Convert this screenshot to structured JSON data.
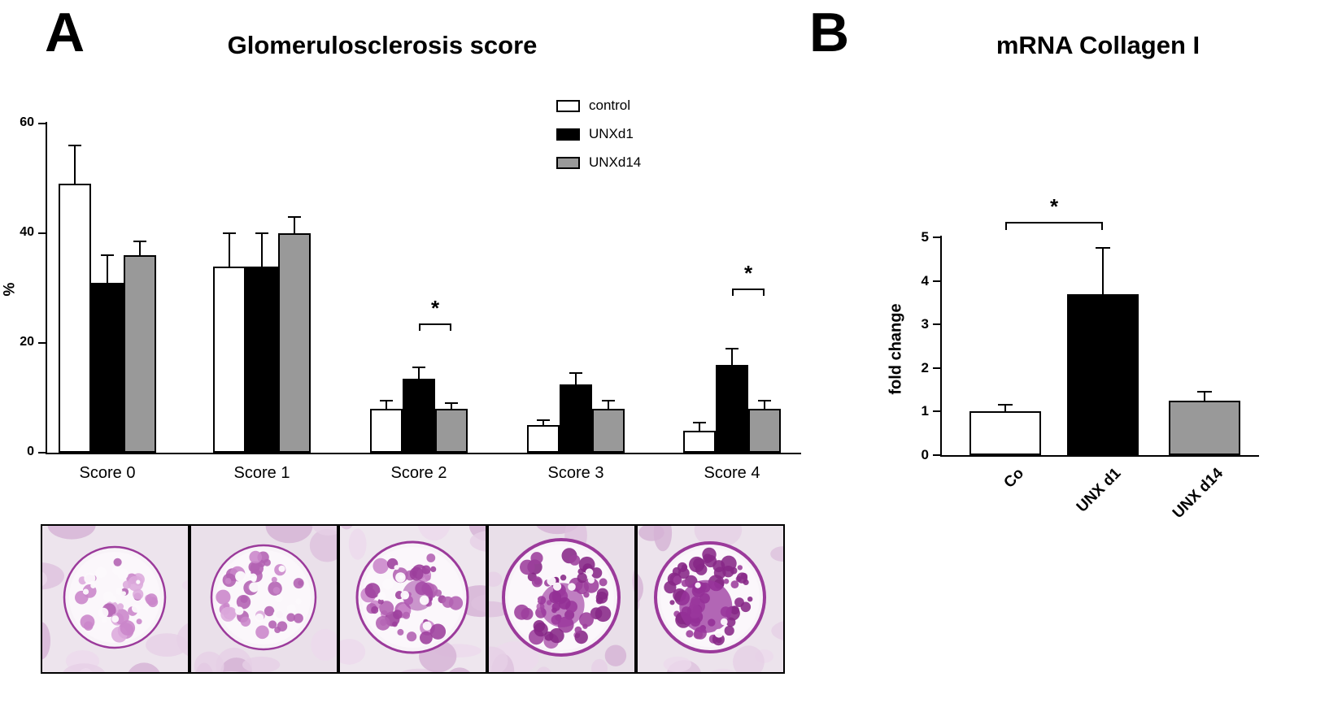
{
  "panels": {
    "a": {
      "letter": "A"
    },
    "b": {
      "letter": "B"
    }
  },
  "chart_data": [
    {
      "type": "bar",
      "panel": "A",
      "title": "Glomerulosclerosis score",
      "ylabel": "%",
      "ylim": [
        0,
        60
      ],
      "yticks": [
        0,
        20,
        40,
        60
      ],
      "grid": false,
      "legend": [
        "control",
        "UNXd1",
        "UNXd14"
      ],
      "legend_position": "top-center",
      "categories": [
        "Score 0",
        "Score 1",
        "Score 2",
        "Score 3",
        "Score 4"
      ],
      "series": [
        {
          "name": "control",
          "color": "#ffffff",
          "values": [
            49,
            34,
            8,
            5,
            4
          ],
          "errors_plus": [
            7,
            6,
            1.5,
            1,
            1.5
          ]
        },
        {
          "name": "UNXd1",
          "color": "#000000",
          "values": [
            31,
            34,
            13.5,
            12.5,
            16
          ],
          "errors_plus": [
            5,
            6,
            2,
            2,
            3
          ]
        },
        {
          "name": "UNXd14",
          "color": "#999999",
          "values": [
            36,
            40,
            8,
            8,
            8
          ],
          "errors_plus": [
            2.5,
            3,
            1,
            1.5,
            1.5
          ]
        }
      ],
      "significance": [
        {
          "category": "Score 2",
          "between": [
            "UNXd1",
            "UNXd14"
          ],
          "label": "*",
          "level": 23.5
        },
        {
          "category": "Score 4",
          "between": [
            "UNXd1",
            "UNXd14"
          ],
          "label": "*",
          "level": 30
        }
      ]
    },
    {
      "type": "bar",
      "panel": "B",
      "title": "mRNA Collagen I",
      "ylabel": "fold change",
      "ylim": [
        0,
        5
      ],
      "yticks": [
        0,
        1,
        2,
        3,
        4,
        5
      ],
      "grid": false,
      "categories": [
        "Co",
        "UNX d1",
        "UNX d14"
      ],
      "values": [
        1.0,
        3.7,
        1.25
      ],
      "errors_plus": [
        0.15,
        1.05,
        0.2
      ],
      "colors": [
        "#ffffff",
        "#000000",
        "#999999"
      ],
      "significance": [
        {
          "between": [
            "Co",
            "UNX d1"
          ],
          "label": "*",
          "level": 5.35
        }
      ]
    }
  ],
  "histology_strip": {
    "panel_count": 5,
    "stain_colors": [
      "#862786",
      "#b261b2",
      "#dcaadc",
      "#ede4ed"
    ]
  }
}
